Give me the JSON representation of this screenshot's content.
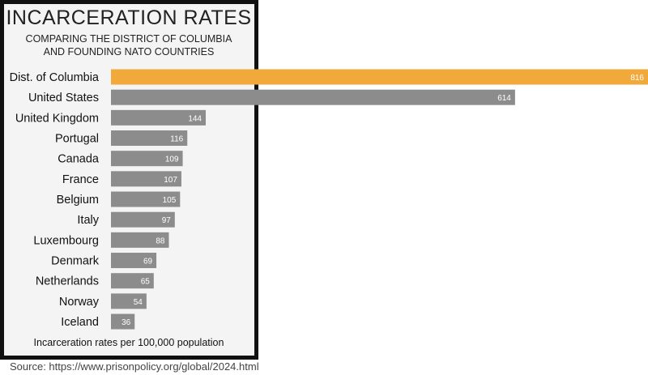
{
  "chart_data": {
    "type": "bar",
    "orientation": "horizontal",
    "title": "INCARCERATION RATES",
    "subtitle": [
      "COMPARING THE DISTRICT OF COLUMBIA",
      "AND FOUNDING NATO COUNTRIES"
    ],
    "xlabel": "Incarceration rates per 100,000 population",
    "categories": [
      "Dist. of Columbia",
      "United States",
      "United Kingdom",
      "Portugal",
      "Canada",
      "France",
      "Belgium",
      "Italy",
      "Luxembourg",
      "Denmark",
      "Netherlands",
      "Norway",
      "Iceland"
    ],
    "values": [
      816,
      614,
      144,
      116,
      109,
      107,
      105,
      97,
      88,
      69,
      65,
      54,
      36
    ],
    "xlim": [
      0,
      816
    ],
    "grid": false,
    "colors": {
      "highlight": "#f2a93b",
      "default": "#8c8c8c"
    }
  },
  "source": "Source: https://www.prisonpolicy.org/global/2024.html"
}
